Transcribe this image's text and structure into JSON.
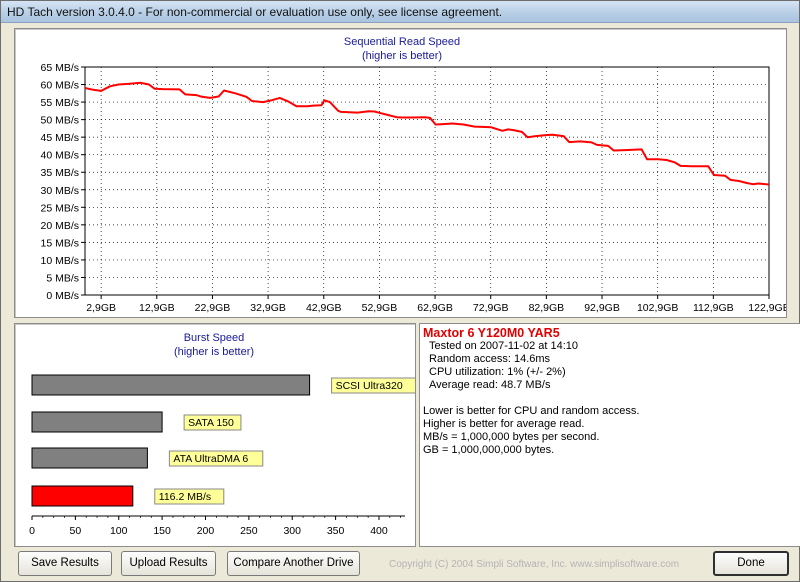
{
  "window": {
    "title": "HD Tach version 3.0.4.0  - For non-commercial or evaluation use only, see license agreement."
  },
  "read_chart": {
    "title": "Sequential Read Speed",
    "subtitle": "(higher is better)",
    "series_color": "#ff0000"
  },
  "burst_chart": {
    "title": "Burst Speed",
    "subtitle": "(higher is better)",
    "ref_color": "#808080",
    "drive_color": "#ff0000",
    "label_bg": "#ffff99"
  },
  "chart_data": [
    {
      "type": "line",
      "title": "Sequential Read Speed",
      "subtitle": "(higher is better)",
      "y_tick_labels": [
        "0 MB/s",
        "5 MB/s",
        "10 MB/s",
        "15 MB/s",
        "20 MB/s",
        "25 MB/s",
        "30 MB/s",
        "35 MB/s",
        "40 MB/s",
        "45 MB/s",
        "50 MB/s",
        "55 MB/s",
        "60 MB/s",
        "65 MB/s"
      ],
      "x_tick_labels": [
        "2,9GB",
        "12,9GB",
        "22,9GB",
        "32,9GB",
        "42,9GB",
        "52,9GB",
        "62,9GB",
        "72,9GB",
        "82,9GB",
        "92,9GB",
        "102,9GB",
        "112,9GB",
        "122,9GB"
      ],
      "xlim": [
        0,
        122.9
      ],
      "ylim": [
        0,
        65
      ],
      "grid": true,
      "series": [
        {
          "x": [
            0,
            1.5,
            2.9,
            4.5,
            6,
            8,
            10,
            11.5,
            12.5,
            14,
            17,
            18,
            20,
            21,
            22.5,
            24,
            25,
            27,
            29,
            30,
            32,
            33.5,
            35,
            36.5,
            38,
            40,
            41,
            42.5,
            43,
            44,
            45.5,
            46,
            49,
            51,
            52,
            54,
            56,
            57,
            59,
            61,
            62,
            63,
            64,
            66,
            68,
            70,
            72,
            73,
            75,
            76,
            77,
            78.5,
            79.5,
            81,
            83,
            84,
            86,
            87,
            89,
            91,
            92,
            94,
            95,
            97,
            100,
            101,
            103,
            104.5,
            106,
            107,
            109,
            110,
            112,
            113,
            115,
            116,
            117.5,
            119,
            120,
            121,
            122.9
          ],
          "y": [
            59,
            58.5,
            58.2,
            59.5,
            60,
            60.2,
            60.5,
            60,
            58.8,
            58.7,
            58.6,
            57.2,
            57,
            56.5,
            56.2,
            56.6,
            58.3,
            57.5,
            56.5,
            55.3,
            55,
            55.5,
            56.2,
            55.2,
            53.8,
            53.8,
            54,
            54.1,
            55.5,
            55,
            52.5,
            52.2,
            52,
            52.4,
            52.3,
            51.5,
            50.7,
            50.6,
            50.6,
            50.7,
            50.5,
            48.6,
            48.7,
            48.9,
            48.6,
            48,
            47.9,
            47.8,
            46.8,
            47.2,
            47,
            46.5,
            45,
            45.3,
            45.6,
            45.7,
            45.3,
            43.6,
            43.8,
            43.5,
            42.8,
            42.5,
            41.2,
            41.3,
            41.5,
            38.7,
            38.7,
            38.5,
            37.8,
            36.8,
            36.7,
            36.7,
            36.7,
            34.2,
            34,
            32.8,
            32.5,
            31.9,
            31.6,
            31.8,
            31.5
          ]
        }
      ]
    },
    {
      "type": "bar",
      "title": "Burst Speed",
      "subtitle": "(higher is better)",
      "orientation": "horizontal",
      "categories": [
        "SCSI Ultra320",
        "SATA 150",
        "ATA UltraDMA 6",
        "116.2 MB/s"
      ],
      "values": [
        320,
        150,
        133,
        116.2
      ],
      "x_ticks": [
        0,
        50,
        100,
        150,
        200,
        250,
        300,
        350,
        400
      ],
      "xlim": [
        0,
        430
      ]
    }
  ],
  "info": {
    "drive_name": "Maxtor 6 Y120M0 YAR5",
    "tested_on": "Tested on 2007-11-02 at 14:10",
    "random_access": "Random access: 14.6ms",
    "cpu_utilization": "CPU utilization: 1% (+/- 2%)",
    "average_read": "Average read: 48.7 MB/s",
    "note_1": "Lower is better for CPU and random access.",
    "note_2": "Higher is better for average read.",
    "note_3": "MB/s = 1,000,000 bytes per second.",
    "note_4": "GB = 1,000,000,000 bytes."
  },
  "buttons": {
    "save_results": "Save Results",
    "upload_results": "Upload Results",
    "compare_another_drive": "Compare Another Drive",
    "done": "Done"
  },
  "footer": {
    "copyright": "Copyright (C) 2004 Simpli Software, Inc. www.simplisoftware.com"
  }
}
